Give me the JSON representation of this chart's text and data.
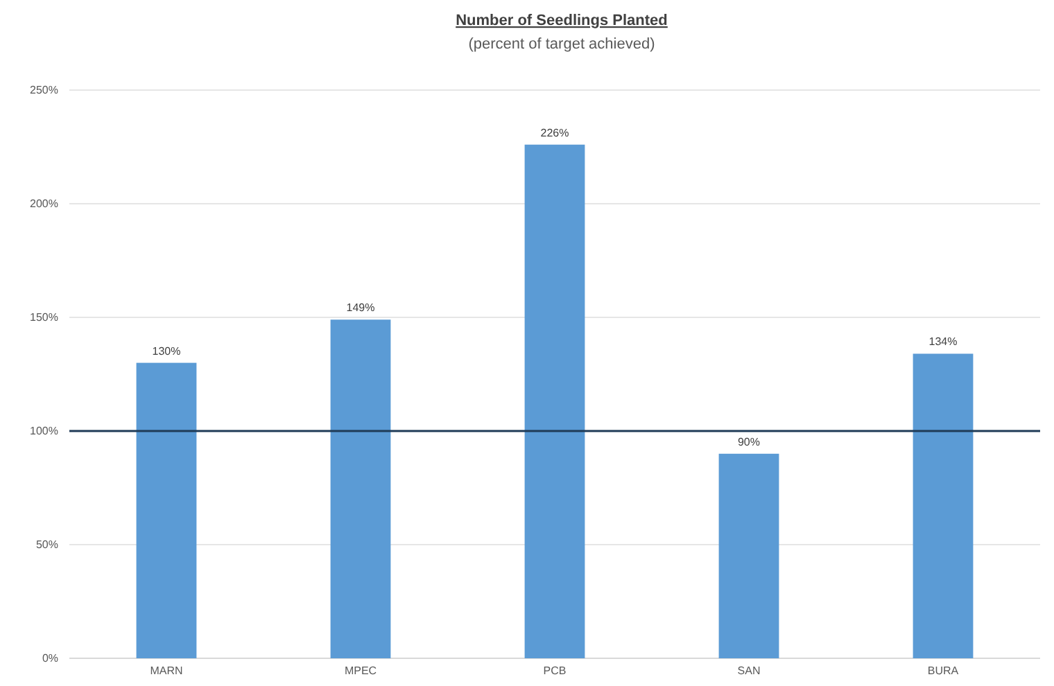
{
  "chart_data": {
    "type": "bar",
    "title": "Number of Seedlings Planted",
    "subtitle": "(percent of target achieved)",
    "categories": [
      "MARN",
      "MPEC",
      "PCB",
      "SAN",
      "BURA"
    ],
    "values": [
      130,
      149,
      226,
      90,
      134
    ],
    "value_labels": [
      "130%",
      "149%",
      "226%",
      "90%",
      "134%"
    ],
    "color": "#5b9bd5",
    "ylim": [
      0,
      250
    ],
    "yticks": [
      {
        "value": 0,
        "label": "0%"
      },
      {
        "value": 50,
        "label": "50%"
      },
      {
        "value": 100,
        "label": "100%"
      },
      {
        "value": 150,
        "label": "150%"
      },
      {
        "value": 200,
        "label": "200%"
      },
      {
        "value": 250,
        "label": "250%"
      }
    ],
    "grid": "y",
    "ref_lines": [
      {
        "axis": "y",
        "value": 100,
        "color": "#1f3b57"
      }
    ]
  }
}
